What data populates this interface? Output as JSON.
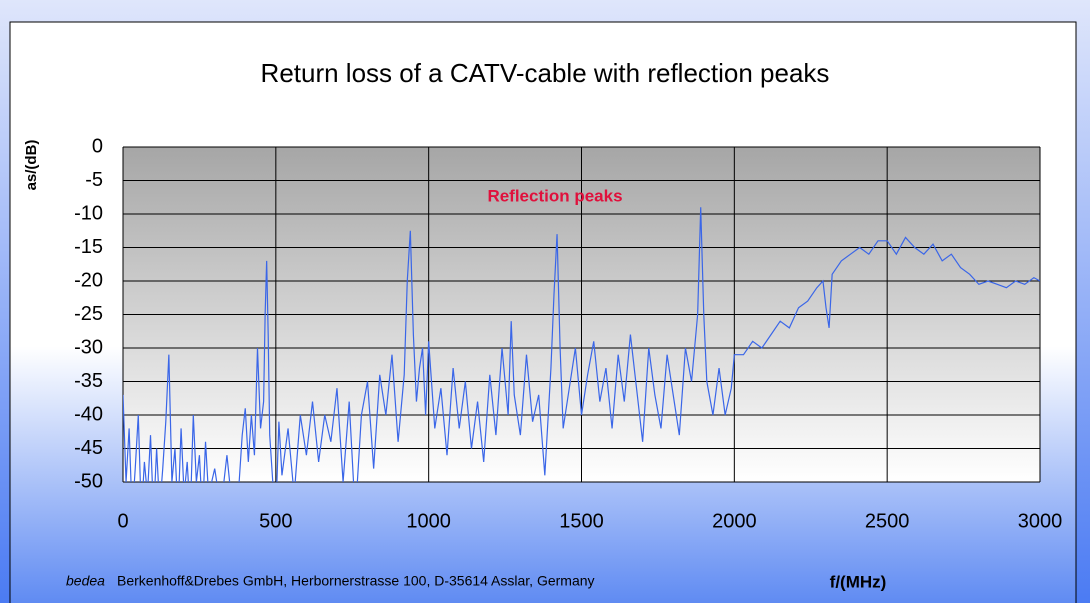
{
  "chart_data": {
    "type": "line",
    "title": "Return loss of a CATV-cable with reflection peaks",
    "ylabel": "as/(dB)",
    "xlabel": "f/(MHz)",
    "annotation": "Reflection peaks",
    "footnote_brand": "bedea",
    "footnote": "Berkenhoff&Drebes GmbH, Herbornerstrasse 100, D-35614 Asslar, Germany",
    "xlim": [
      0,
      3000
    ],
    "xticks": [
      0,
      500,
      1000,
      1500,
      2000,
      2500,
      3000
    ],
    "ylim": [
      -50,
      0
    ],
    "yticks": [
      0,
      -5,
      -10,
      -15,
      -20,
      -25,
      -30,
      -35,
      -40,
      -45,
      -50
    ],
    "grid": true,
    "series": [
      {
        "name": "Return loss",
        "color": "#3a66e8",
        "x": [
          0,
          10,
          20,
          30,
          40,
          50,
          60,
          70,
          80,
          90,
          100,
          110,
          120,
          130,
          140,
          150,
          160,
          170,
          180,
          190,
          200,
          210,
          220,
          230,
          240,
          250,
          260,
          270,
          280,
          300,
          320,
          340,
          360,
          380,
          390,
          400,
          410,
          420,
          430,
          440,
          450,
          460,
          465,
          470,
          475,
          480,
          490,
          500,
          510,
          520,
          540,
          560,
          580,
          600,
          620,
          640,
          660,
          680,
          700,
          720,
          740,
          760,
          780,
          800,
          820,
          840,
          860,
          880,
          900,
          920,
          930,
          940,
          950,
          960,
          970,
          980,
          990,
          1000,
          1020,
          1040,
          1060,
          1080,
          1100,
          1120,
          1140,
          1160,
          1180,
          1200,
          1220,
          1240,
          1260,
          1270,
          1280,
          1300,
          1320,
          1340,
          1360,
          1380,
          1400,
          1410,
          1420,
          1430,
          1440,
          1460,
          1480,
          1500,
          1520,
          1540,
          1560,
          1580,
          1600,
          1620,
          1640,
          1660,
          1680,
          1700,
          1720,
          1740,
          1760,
          1780,
          1800,
          1820,
          1840,
          1860,
          1880,
          1890,
          1900,
          1910,
          1930,
          1950,
          1970,
          1990,
          2000,
          2030,
          2060,
          2090,
          2120,
          2150,
          2180,
          2210,
          2240,
          2270,
          2290,
          2300,
          2310,
          2320,
          2350,
          2380,
          2410,
          2440,
          2470,
          2500,
          2530,
          2560,
          2590,
          2620,
          2650,
          2680,
          2710,
          2740,
          2770,
          2800,
          2830,
          2860,
          2890,
          2920,
          2950,
          2980,
          3000
        ],
        "values": [
          -37,
          -50,
          -42,
          -55,
          -48,
          -40,
          -55,
          -47,
          -52,
          -43,
          -55,
          -45,
          -54,
          -48,
          -41,
          -31,
          -50,
          -45,
          -55,
          -42,
          -52,
          -47,
          -55,
          -40,
          -50,
          -46,
          -55,
          -44,
          -52,
          -48,
          -54,
          -46,
          -55,
          -50,
          -43,
          -39,
          -47,
          -40,
          -46,
          -30,
          -42,
          -38,
          -25,
          -17,
          -28,
          -43,
          -50,
          -55,
          -41,
          -49,
          -42,
          -52,
          -40,
          -46,
          -38,
          -47,
          -40,
          -44,
          -36,
          -50,
          -38,
          -55,
          -40,
          -35,
          -48,
          -34,
          -40,
          -31,
          -44,
          -34,
          -20,
          -12.5,
          -28,
          -38,
          -33,
          -30,
          -40,
          -29,
          -42,
          -36,
          -46,
          -33,
          -42,
          -35,
          -45,
          -38,
          -47,
          -34,
          -43,
          -30,
          -40,
          -26,
          -37,
          -43,
          -31,
          -41,
          -37,
          -49,
          -33,
          -22,
          -13,
          -30,
          -42,
          -36,
          -30,
          -40,
          -34,
          -29,
          -38,
          -33,
          -42,
          -31,
          -38,
          -28,
          -36,
          -44,
          -30,
          -37,
          -42,
          -31,
          -37,
          -43,
          -30,
          -35,
          -25,
          -9,
          -25,
          -35,
          -40,
          -33,
          -40,
          -36,
          -31,
          -31,
          -29,
          -30,
          -28,
          -26,
          -27,
          -24,
          -23,
          -21,
          -20,
          -24,
          -27,
          -19,
          -17,
          -16,
          -15,
          -16,
          -14,
          -14,
          -16,
          -13.5,
          -15,
          -16,
          -14.5,
          -17,
          -16,
          -18,
          -19,
          -20.5,
          -20,
          -20.5,
          -21,
          -20,
          -20.5,
          -19.5,
          -20
        ]
      }
    ]
  }
}
